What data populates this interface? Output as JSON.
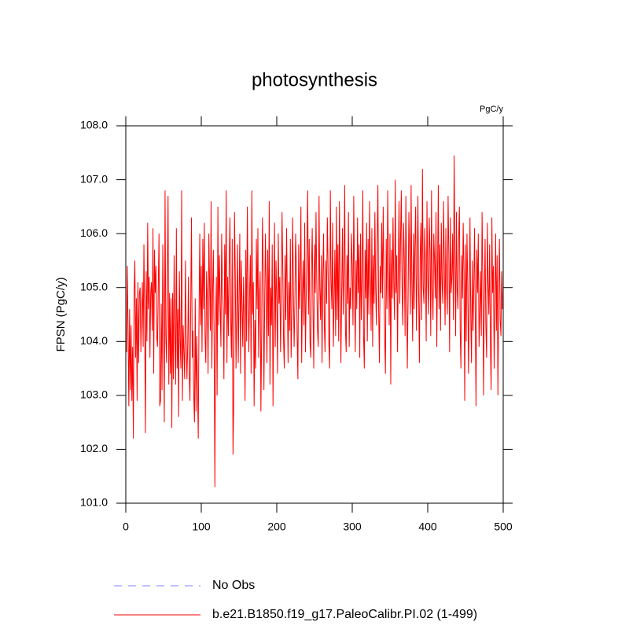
{
  "chart_data": {
    "type": "line",
    "title": "photosynthesis",
    "units_label": "PgC/y",
    "y_label": "FPSN  (PgC/y)",
    "xlim": [
      0,
      500
    ],
    "xticks": [
      0,
      100,
      200,
      300,
      400,
      500
    ],
    "ylim": [
      101,
      108
    ],
    "yticks": [
      {
        "value": 101,
        "label": "101.0"
      },
      {
        "value": 102,
        "label": "102.0"
      },
      {
        "value": 103,
        "label": "103.0"
      },
      {
        "value": 104,
        "label": "104.0"
      },
      {
        "value": 105,
        "label": "105.0"
      },
      {
        "value": 106,
        "label": "106.0"
      },
      {
        "value": 107,
        "label": "107.0"
      },
      {
        "value": 108,
        "label": "108.0"
      }
    ],
    "legend": [
      {
        "label": "No Obs",
        "color": "#8080ff",
        "dashed": true
      }
    ],
    "x": [
      1,
      2,
      3,
      4,
      5,
      6,
      7,
      8,
      9,
      10,
      11,
      12,
      13,
      14,
      15,
      16,
      17,
      18,
      19,
      20,
      21,
      22,
      23,
      24,
      25,
      26,
      27,
      28,
      29,
      30,
      31,
      32,
      33,
      34,
      35,
      36,
      37,
      38,
      39,
      40,
      41,
      42,
      43,
      44,
      45,
      46,
      47,
      48,
      49,
      50,
      51,
      52,
      53,
      54,
      55,
      56,
      57,
      58,
      59,
      60,
      61,
      62,
      63,
      64,
      65,
      66,
      67,
      68,
      69,
      70,
      71,
      72,
      73,
      74,
      75,
      76,
      77,
      78,
      79,
      80,
      81,
      82,
      83,
      84,
      85,
      86,
      87,
      88,
      89,
      90,
      91,
      92,
      93,
      94,
      95,
      96,
      97,
      98,
      99,
      100,
      101,
      102,
      103,
      104,
      105,
      106,
      107,
      108,
      109,
      110,
      111,
      112,
      113,
      114,
      115,
      116,
      117,
      118,
      119,
      120,
      121,
      122,
      123,
      124,
      125,
      126,
      127,
      128,
      129,
      130,
      131,
      132,
      133,
      134,
      135,
      136,
      137,
      138,
      139,
      140,
      141,
      142,
      143,
      144,
      145,
      146,
      147,
      148,
      149,
      150,
      151,
      152,
      153,
      154,
      155,
      156,
      157,
      158,
      159,
      160,
      161,
      162,
      163,
      164,
      165,
      166,
      167,
      168,
      169,
      170,
      171,
      172,
      173,
      174,
      175,
      176,
      177,
      178,
      179,
      180,
      181,
      182,
      183,
      184,
      185,
      186,
      187,
      188,
      189,
      190,
      191,
      192,
      193,
      194,
      195,
      196,
      197,
      198,
      199,
      200,
      201,
      202,
      203,
      204,
      205,
      206,
      207,
      208,
      209,
      210,
      211,
      212,
      213,
      214,
      215,
      216,
      217,
      218,
      219,
      220,
      221,
      222,
      223,
      224,
      225,
      226,
      227,
      228,
      229,
      230,
      231,
      232,
      233,
      234,
      235,
      236,
      237,
      238,
      239,
      240,
      241,
      242,
      243,
      244,
      245,
      246,
      247,
      248,
      249,
      250,
      251,
      252,
      253,
      254,
      255,
      256,
      257,
      258,
      259,
      260,
      261,
      262,
      263,
      264,
      265,
      266,
      267,
      268,
      269,
      270,
      271,
      272,
      273,
      274,
      275,
      276,
      277,
      278,
      279,
      280,
      281,
      282,
      283,
      284,
      285,
      286,
      287,
      288,
      289,
      290,
      291,
      292,
      293,
      294,
      295,
      296,
      297,
      298,
      299,
      300,
      301,
      302,
      303,
      304,
      305,
      306,
      307,
      308,
      309,
      310,
      311,
      312,
      313,
      314,
      315,
      316,
      317,
      318,
      319,
      320,
      321,
      322,
      323,
      324,
      325,
      326,
      327,
      328,
      329,
      330,
      331,
      332,
      333,
      334,
      335,
      336,
      337,
      338,
      339,
      340,
      341,
      342,
      343,
      344,
      345,
      346,
      347,
      348,
      349,
      350,
      351,
      352,
      353,
      354,
      355,
      356,
      357,
      358,
      359,
      360,
      361,
      362,
      363,
      364,
      365,
      366,
      367,
      368,
      369,
      370,
      371,
      372,
      373,
      374,
      375,
      376,
      377,
      378,
      379,
      380,
      381,
      382,
      383,
      384,
      385,
      386,
      387,
      388,
      389,
      390,
      391,
      392,
      393,
      394,
      395,
      396,
      397,
      398,
      399,
      400,
      401,
      402,
      403,
      404,
      405,
      406,
      407,
      408,
      409,
      410,
      411,
      412,
      413,
      414,
      415,
      416,
      417,
      418,
      419,
      420,
      421,
      422,
      423,
      424,
      425,
      426,
      427,
      428,
      429,
      430,
      431,
      432,
      433,
      434,
      435,
      436,
      437,
      438,
      439,
      440,
      441,
      442,
      443,
      444,
      445,
      446,
      447,
      448,
      449,
      450,
      451,
      452,
      453,
      454,
      455,
      456,
      457,
      458,
      459,
      460,
      461,
      462,
      463,
      464,
      465,
      466,
      467,
      468,
      469,
      470,
      471,
      472,
      473,
      474,
      475,
      476,
      477,
      478,
      479,
      480,
      481,
      482,
      483,
      484,
      485,
      486,
      487,
      488,
      489,
      490,
      491,
      492,
      493,
      494,
      495,
      496,
      497,
      498,
      499
    ],
    "series": [
      {
        "name": "b.e21.B1850.f19_g17.PaleoCalibr.PI.02 (1-499)",
        "color": "#ff0000",
        "values": [
          103.8,
          105.4,
          104.2,
          102.8,
          104.6,
          103.1,
          104.3,
          102.9,
          103.9,
          102.2,
          104.9,
          105.5,
          103.7,
          104.8,
          102.9,
          105.1,
          103.6,
          104.9,
          105.0,
          103.8,
          104.6,
          105.1,
          103.9,
          105.8,
          104.4,
          102.3,
          105.3,
          104.0,
          106.2,
          104.6,
          105.2,
          103.7,
          104.9,
          105.1,
          104.2,
          106.1,
          103.4,
          105.7,
          104.9,
          105.4,
          104.1,
          103.9,
          105.0,
          106.0,
          102.8,
          102.9,
          104.7,
          103.1,
          105.8,
          104.4,
          102.5,
          106.8,
          104.1,
          103.6,
          105.2,
          106.7,
          103.2,
          104.9,
          103.4,
          104.8,
          102.4,
          104.9,
          103.3,
          105.6,
          104.2,
          103.2,
          106.1,
          103.5,
          104.6,
          102.6,
          105.3,
          104.0,
          103.5,
          106.8,
          102.9,
          104.3,
          103.8,
          103.3,
          105.5,
          104.1,
          103.3,
          103.9,
          105.2,
          103.4,
          102.9,
          104.6,
          106.3,
          103.7,
          104.2,
          103.0,
          102.5,
          104.8,
          102.7,
          104.1,
          103.2,
          102.2,
          104.5,
          106.0,
          104.3,
          105.4,
          103.8,
          105.9,
          104.6,
          106.2,
          104.1,
          103.6,
          105.3,
          104.8,
          103.4,
          106.0,
          105.1,
          104.2,
          106.6,
          103.5,
          104.9,
          105.7,
          104.0,
          101.3,
          104.4,
          105.2,
          103.0,
          106.5,
          104.3,
          105.6,
          104.7,
          103.9,
          106.0,
          105.0,
          104.6,
          103.3,
          105.8,
          104.5,
          106.8,
          103.6,
          105.2,
          104.1,
          105.5,
          106.3,
          104.4,
          103.7,
          105.9,
          101.9,
          102.9,
          106.4,
          105.3,
          103.5,
          104.6,
          105.8,
          103.6,
          104.8,
          106.0,
          103.4,
          105.5,
          104.7,
          103.9,
          105.2,
          104.3,
          102.9,
          105.7,
          104.0,
          106.5,
          105.0,
          103.8,
          104.9,
          105.6,
          103.4,
          106.8,
          104.5,
          105.1,
          102.8,
          104.4,
          103.5,
          105.9,
          104.6,
          106.1,
          103.7,
          104.8,
          105.3,
          102.7,
          104.2,
          106.3,
          105.4,
          103.1,
          104.7,
          106.0,
          104.9,
          103.6,
          105.7,
          104.1,
          106.6,
          103.2,
          105.0,
          104.3,
          105.8,
          102.8,
          104.6,
          106.2,
          103.9,
          105.5,
          104.8,
          103.4,
          106.0,
          104.7,
          105.2,
          103.8,
          104.9,
          106.4,
          105.3,
          104.0,
          103.5,
          105.6,
          104.4,
          106.1,
          104.8,
          103.6,
          105.1,
          104.2,
          105.9,
          103.7,
          104.5,
          106.3,
          105.0,
          103.9,
          104.7,
          106.0,
          105.4,
          104.1,
          103.3,
          105.8,
          104.6,
          105.2,
          106.5,
          103.6,
          104.9,
          105.5,
          104.3,
          106.2,
          103.8,
          104.8,
          105.7,
          106.8,
          104.5,
          105.9,
          104.0,
          103.7,
          105.3,
          106.1,
          104.6,
          103.5,
          105.8,
          104.9,
          106.4,
          105.1,
          104.2,
          103.9,
          106.7,
          105.0,
          104.4,
          105.6,
          103.6,
          105.2,
          106.0,
          104.3,
          103.8,
          105.5,
          104.7,
          106.3,
          105.4,
          104.0,
          103.5,
          106.8,
          105.1,
          104.6,
          106.2,
          103.9,
          104.8,
          105.7,
          104.1,
          106.5,
          104.4,
          105.8,
          104.0,
          106.6,
          105.2,
          103.6,
          104.9,
          106.1,
          104.5,
          105.3,
          106.9,
          104.2,
          103.8,
          105.6,
          104.7,
          106.4,
          103.9,
          105.0,
          104.6,
          106.0,
          105.4,
          104.3,
          106.7,
          105.1,
          103.8,
          105.5,
          104.6,
          106.3,
          104.9,
          105.8,
          103.7,
          106.0,
          104.4,
          105.2,
          106.8,
          104.1,
          103.5,
          105.7,
          104.8,
          106.2,
          104.0,
          105.9,
          104.5,
          106.6,
          105.3,
          104.2,
          106.1,
          103.9,
          105.6,
          104.7,
          106.4,
          105.0,
          104.3,
          105.8,
          106.9,
          104.6,
          103.6,
          105.4,
          104.9,
          106.2,
          104.8,
          106.5,
          105.2,
          104.1,
          103.4,
          105.9,
          104.6,
          106.8,
          105.5,
          104.3,
          106.0,
          103.2,
          105.7,
          104.8,
          106.3,
          105.1,
          104.4,
          107.0,
          104.9,
          105.6,
          103.8,
          105.4,
          106.6,
          104.7,
          105.9,
          106.8,
          105.0,
          104.3,
          106.2,
          105.5,
          104.1,
          106.7,
          105.3,
          103.5,
          104.8,
          106.4,
          105.7,
          104.5,
          106.9,
          105.1,
          104.0,
          106.0,
          104.6,
          105.8,
          106.5,
          104.2,
          105.3,
          106.7,
          104.9,
          103.6,
          105.6,
          106.2,
          104.4,
          107.2,
          105.0,
          104.7,
          106.1,
          105.4,
          104.0,
          106.6,
          105.2,
          104.5,
          106.3,
          105.7,
          104.1,
          106.8,
          105.0,
          104.4,
          106.0,
          105.5,
          104.8,
          106.4,
          103.9,
          105.3,
          106.9,
          104.6,
          105.8,
          104.2,
          106.2,
          105.1,
          104.7,
          106.6,
          105.4,
          104.3,
          106.1,
          105.0,
          104.5,
          106.7,
          105.6,
          103.8,
          106.3,
          104.9,
          105.2,
          106.0,
          104.4,
          107.45,
          105.7,
          104.1,
          106.4,
          105.0,
          104.6,
          105.9,
          106.5,
          104.2,
          103.5,
          105.6,
          104.8,
          106.2,
          105.3,
          102.9,
          105.8,
          104.0,
          106.0,
          105.1,
          103.4,
          104.7,
          106.3,
          104.5,
          103.6,
          105.5,
          104.2,
          105.0,
          106.1,
          104.4,
          102.8,
          105.7,
          104.9,
          106.0,
          103.9,
          104.6,
          105.3,
          104.1,
          106.4,
          105.2,
          103.0,
          104.8,
          105.9,
          104.3,
          103.7,
          106.2,
          105.1,
          104.5,
          105.8,
          104.0,
          103.1,
          106.3,
          104.9,
          105.4,
          103.5,
          104.7,
          106.0,
          104.2,
          105.6,
          103.0,
          104.8,
          105.9,
          104.4,
          104.1,
          105.3,
          104.6
        ]
      }
    ]
  }
}
